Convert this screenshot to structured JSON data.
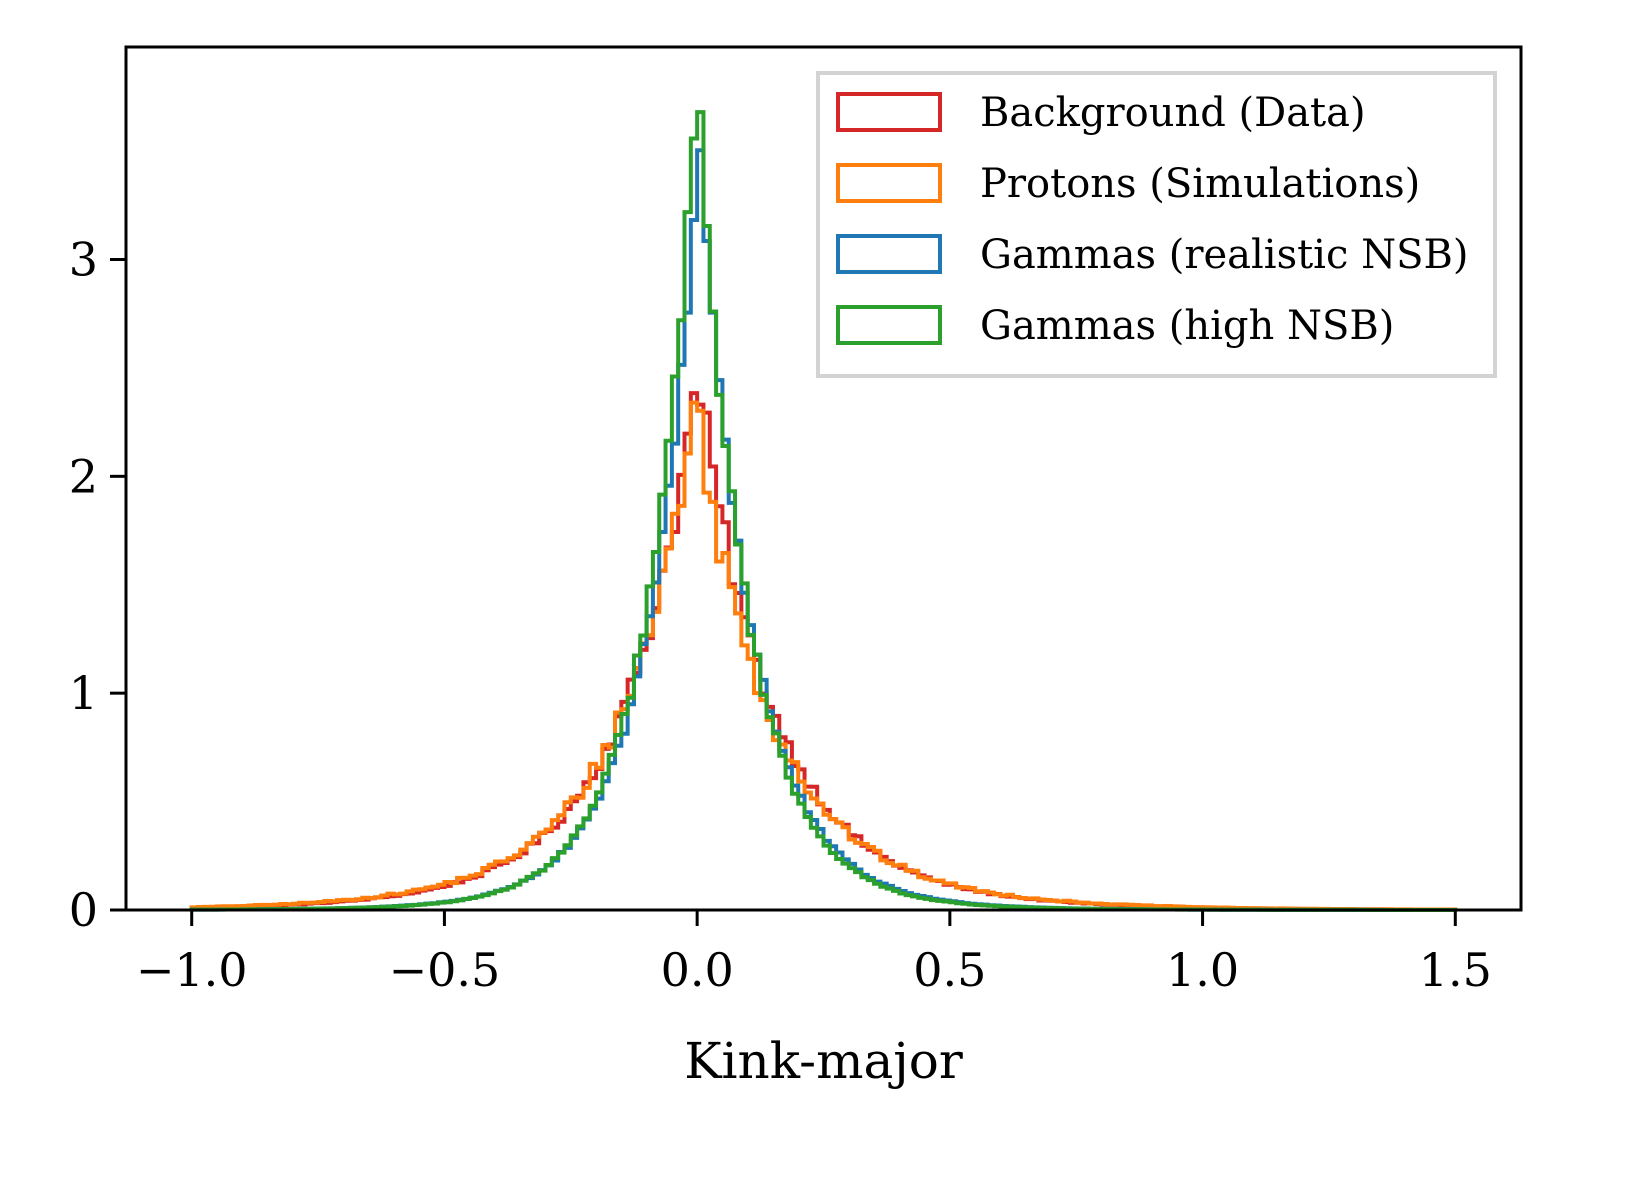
{
  "chart_data": {
    "type": "histogram",
    "title": "",
    "xlabel": "Kink-major",
    "ylabel": "",
    "xlim": [
      -1.13,
      1.63
    ],
    "ylim": [
      0,
      3.98
    ],
    "x_ticks": [
      {
        "value": -1.0,
        "label": "−1.0"
      },
      {
        "value": -0.5,
        "label": "−0.5"
      },
      {
        "value": 0.0,
        "label": "0.0"
      },
      {
        "value": 0.5,
        "label": "0.5"
      },
      {
        "value": 1.0,
        "label": "1.0"
      },
      {
        "value": 1.5,
        "label": "1.5"
      }
    ],
    "y_ticks": [
      {
        "value": 0,
        "label": "0"
      },
      {
        "value": 1,
        "label": "1"
      },
      {
        "value": 2,
        "label": "2"
      },
      {
        "value": 3,
        "label": "3"
      }
    ],
    "grid": false,
    "legend_position": "top-right",
    "histtype": "step",
    "bin_range": [
      -1.0,
      1.5
    ],
    "bin_count": 200,
    "series": [
      {
        "name": "Background (Data)",
        "color": "#d62728",
        "shape": {
          "peak": 2.45,
          "center": 0.0,
          "core_width": 0.135,
          "tail_amp": 0.42,
          "tail_width": 0.26,
          "noise": 0.05
        }
      },
      {
        "name": "Protons (Simulations)",
        "color": "#ff7f0e",
        "shape": {
          "peak": 2.33,
          "center": -0.005,
          "core_width": 0.135,
          "tail_amp": 0.45,
          "tail_width": 0.27,
          "noise": 0.07
        }
      },
      {
        "name": "Gammas (realistic NSB)",
        "color": "#1f77b4",
        "shape": {
          "peak": 3.55,
          "center": 0.005,
          "core_width": 0.098,
          "tail_amp": 0.22,
          "tail_width": 0.2,
          "noise": 0.03
        }
      },
      {
        "name": "Gammas (high NSB)",
        "color": "#2ca02c",
        "shape": {
          "peak": 3.8,
          "center": 0.0,
          "core_width": 0.095,
          "tail_amp": 0.2,
          "tail_width": 0.2,
          "noise": 0.03
        }
      }
    ]
  }
}
